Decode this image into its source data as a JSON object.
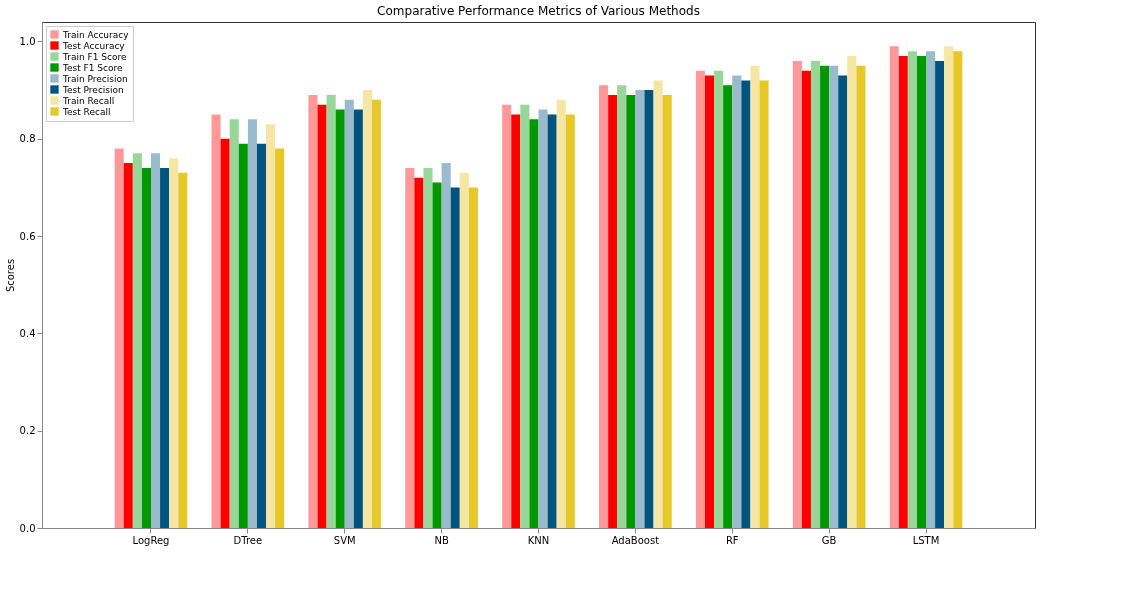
{
  "chart_data": {
    "type": "bar",
    "title": "Comparative Performance Metrics of Various Methods",
    "ylabel": "Scores",
    "categories": [
      "LogReg",
      "DTree",
      "SVM",
      "NB",
      "KNN",
      "AdaBoost",
      "RF",
      "GB",
      "LSTM"
    ],
    "series": [
      {
        "name": "Train Accuracy",
        "color": "#ff9999",
        "values": [
          0.78,
          0.85,
          0.89,
          0.74,
          0.87,
          0.91,
          0.94,
          0.96,
          0.99
        ]
      },
      {
        "name": "Test Accuracy",
        "color": "#ff0000",
        "values": [
          0.75,
          0.8,
          0.87,
          0.72,
          0.85,
          0.89,
          0.93,
          0.94,
          0.97
        ]
      },
      {
        "name": "Train F1 Score",
        "color": "#99d699",
        "values": [
          0.77,
          0.84,
          0.89,
          0.74,
          0.87,
          0.91,
          0.94,
          0.96,
          0.98
        ]
      },
      {
        "name": "Test F1 Score",
        "color": "#009900",
        "values": [
          0.74,
          0.79,
          0.86,
          0.71,
          0.84,
          0.89,
          0.91,
          0.95,
          0.97
        ]
      },
      {
        "name": "Train Precision",
        "color": "#99bbcc",
        "values": [
          0.77,
          0.84,
          0.88,
          0.75,
          0.86,
          0.9,
          0.93,
          0.95,
          0.98
        ]
      },
      {
        "name": "Test Precision",
        "color": "#005580",
        "values": [
          0.74,
          0.79,
          0.86,
          0.7,
          0.85,
          0.9,
          0.92,
          0.93,
          0.96
        ]
      },
      {
        "name": "Train Recall",
        "color": "#f5e6a3",
        "values": [
          0.76,
          0.83,
          0.9,
          0.73,
          0.88,
          0.92,
          0.95,
          0.97,
          0.99
        ]
      },
      {
        "name": "Test Recall",
        "color": "#e6c829",
        "values": [
          0.73,
          0.78,
          0.88,
          0.7,
          0.85,
          0.89,
          0.92,
          0.95,
          0.98
        ]
      }
    ],
    "ylim": [
      0,
      1.04
    ],
    "yticks": [
      {
        "value": 0,
        "label": "0.0"
      },
      {
        "value": 0.2,
        "label": "0.2"
      },
      {
        "value": 0.4,
        "label": "0.4"
      },
      {
        "value": 0.6,
        "label": "0.6"
      },
      {
        "value": 0.8,
        "label": "0.8"
      },
      {
        "value": 1,
        "label": "1.0"
      }
    ],
    "grid": false,
    "legend": "top left"
  }
}
